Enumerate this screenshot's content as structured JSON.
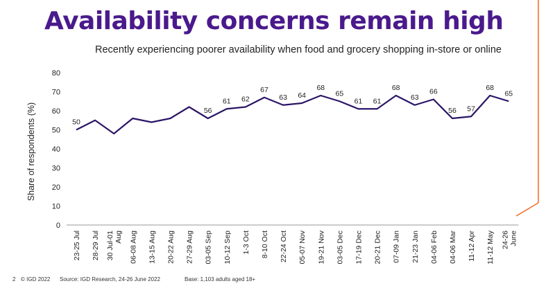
{
  "slide": {
    "title": "Availability concerns remain high",
    "page_number": "2",
    "copyright": "© IGD 2022",
    "source": "Source: IGD Research, 24-26 June 2022",
    "base": "Base: 1,103 adults aged 18+",
    "accent_color": "#f06a1e",
    "title_color": "#4a1a8c"
  },
  "chart_data": {
    "type": "line",
    "title": "Recently experiencing poorer availability when food and grocery shopping in-store or online",
    "ylabel": "Share of respondents (%)",
    "xlabel": "",
    "ylim": [
      0,
      80
    ],
    "yticks": [
      0,
      10,
      20,
      30,
      40,
      50,
      60,
      70,
      80
    ],
    "grid": false,
    "line_color": "#2b1466",
    "categories": [
      "23-25 Jul",
      "28-29 Jul",
      "30 Jul-01 Aug",
      "06-08 Aug",
      "13-15 Aug",
      "20-22 Aug",
      "27-29 Aug",
      "03-05 Sep",
      "10-12 Sep",
      "1-3 Oct",
      "8-10 Oct",
      "22-24 Oct",
      "05-07 Nov",
      "19-21 Nov",
      "03-05 Dec",
      "17-19 Dec",
      "20-21 Dec",
      "07-09 Jan",
      "21-23 Jan",
      "04-06 Feb",
      "04-06 Mar",
      "11-12 Apr",
      "11-12 May",
      "24-26 June"
    ],
    "category_lines": [
      [
        "23-25 Jul"
      ],
      [
        "28-29 Jul"
      ],
      [
        "30 Jul-01",
        "Aug"
      ],
      [
        "06-08 Aug"
      ],
      [
        "13-15 Aug"
      ],
      [
        "20-22 Aug"
      ],
      [
        "27-29 Aug"
      ],
      [
        "03-05 Sep"
      ],
      [
        "10-12 Sep"
      ],
      [
        "1-3 Oct"
      ],
      [
        "8-10 Oct"
      ],
      [
        "22-24 Oct"
      ],
      [
        "05-07 Nov"
      ],
      [
        "19-21 Nov"
      ],
      [
        "03-05 Dec"
      ],
      [
        "17-19 Dec"
      ],
      [
        "20-21 Dec"
      ],
      [
        "07-09 Jan"
      ],
      [
        "21-23 Jan"
      ],
      [
        "04-06 Feb"
      ],
      [
        "04-06 Mar"
      ],
      [
        "11-12 Apr"
      ],
      [
        "11-12 May"
      ],
      [
        "24-26",
        "June"
      ]
    ],
    "values": [
      50,
      55,
      48,
      56,
      54,
      56,
      62,
      56,
      61,
      62,
      67,
      63,
      64,
      68,
      65,
      61,
      61,
      68,
      63,
      66,
      56,
      57,
      68,
      65
    ],
    "labeled": [
      true,
      false,
      false,
      false,
      false,
      false,
      false,
      true,
      true,
      true,
      true,
      true,
      true,
      true,
      true,
      true,
      true,
      true,
      true,
      true,
      true,
      true,
      true,
      true
    ]
  }
}
